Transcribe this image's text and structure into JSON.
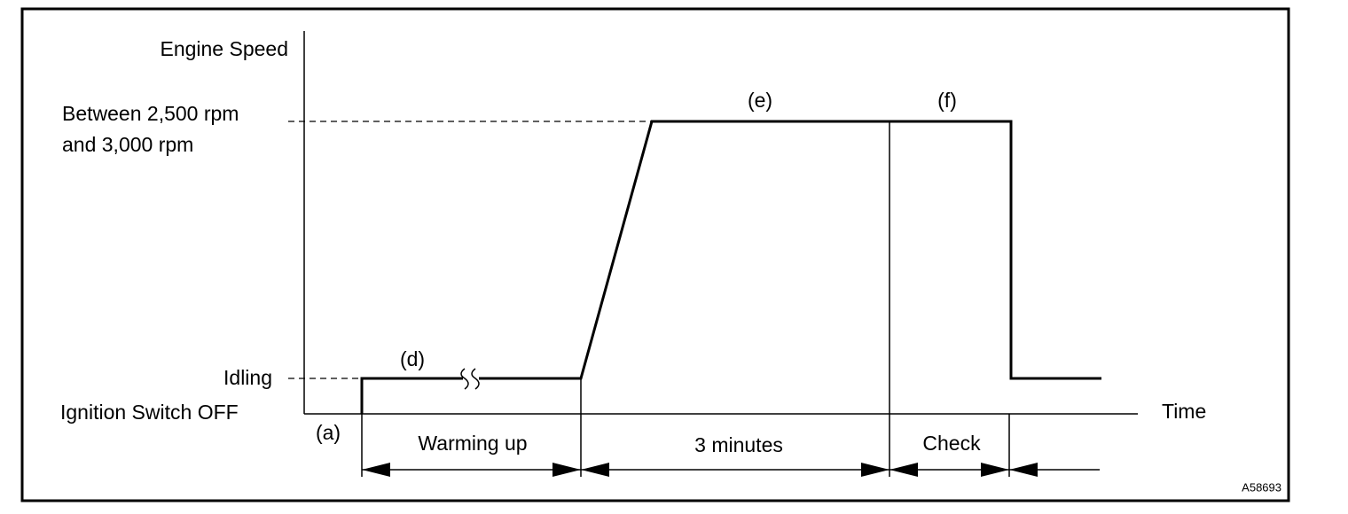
{
  "labels": {
    "y_axis": "Engine Speed",
    "x_axis": "Time",
    "high_speed": [
      "Between 2,500 rpm",
      "and 3,000 rpm"
    ],
    "idling": "Idling",
    "off": "Ignition Switch OFF"
  },
  "markers": [
    "(a)",
    "(d)",
    "(e)",
    "(f)"
  ],
  "intervals": [
    "Warming up",
    "3 minutes",
    "Check"
  ],
  "figure_id": "A58693"
}
